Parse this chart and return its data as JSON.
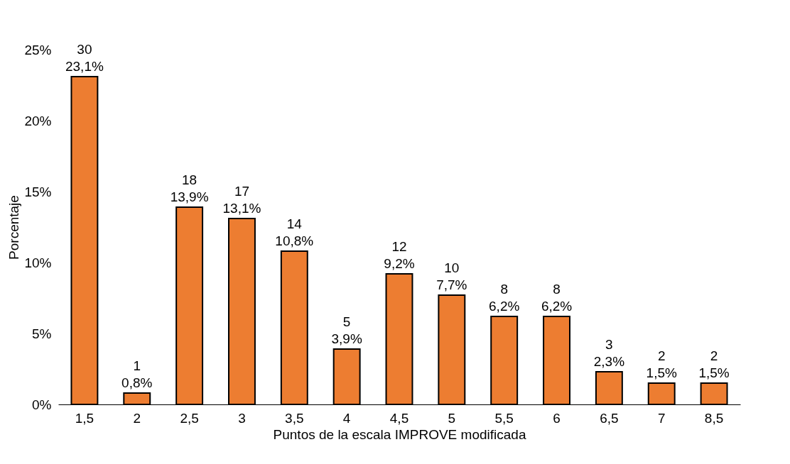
{
  "chart_data": {
    "type": "bar",
    "xlabel": "Puntos de la escala IMPROVE modificada",
    "ylabel": "Porcentaje",
    "categories": [
      "1,5",
      "2",
      "2,5",
      "3",
      "3,5",
      "4",
      "4,5",
      "5",
      "5,5",
      "6",
      "6,5",
      "7",
      "8,5"
    ],
    "values": [
      23.1,
      0.8,
      13.9,
      13.1,
      10.8,
      3.9,
      9.2,
      7.7,
      6.2,
      6.2,
      2.3,
      1.5,
      1.5
    ],
    "value_labels": [
      "30\n23,1%",
      "1\n0,8%",
      "18\n13,9%",
      "17\n13,1%",
      "14\n10,8%",
      "5\n3,9%",
      "12\n9,2%",
      "10\n7,7%",
      "8\n6,2%",
      "8\n6,2%",
      "3\n2,3%",
      "2\n1,5%",
      "2\n1,5%"
    ],
    "color": "#ed7d31",
    "ylim": [
      0,
      25
    ],
    "yticks": [
      {
        "value": 0,
        "label": "0%"
      },
      {
        "value": 5,
        "label": "5%"
      },
      {
        "value": 10,
        "label": "10%"
      },
      {
        "value": 15,
        "label": "15%"
      },
      {
        "value": 20,
        "label": "20%"
      },
      {
        "value": 25,
        "label": "25%"
      }
    ],
    "grid": false
  }
}
